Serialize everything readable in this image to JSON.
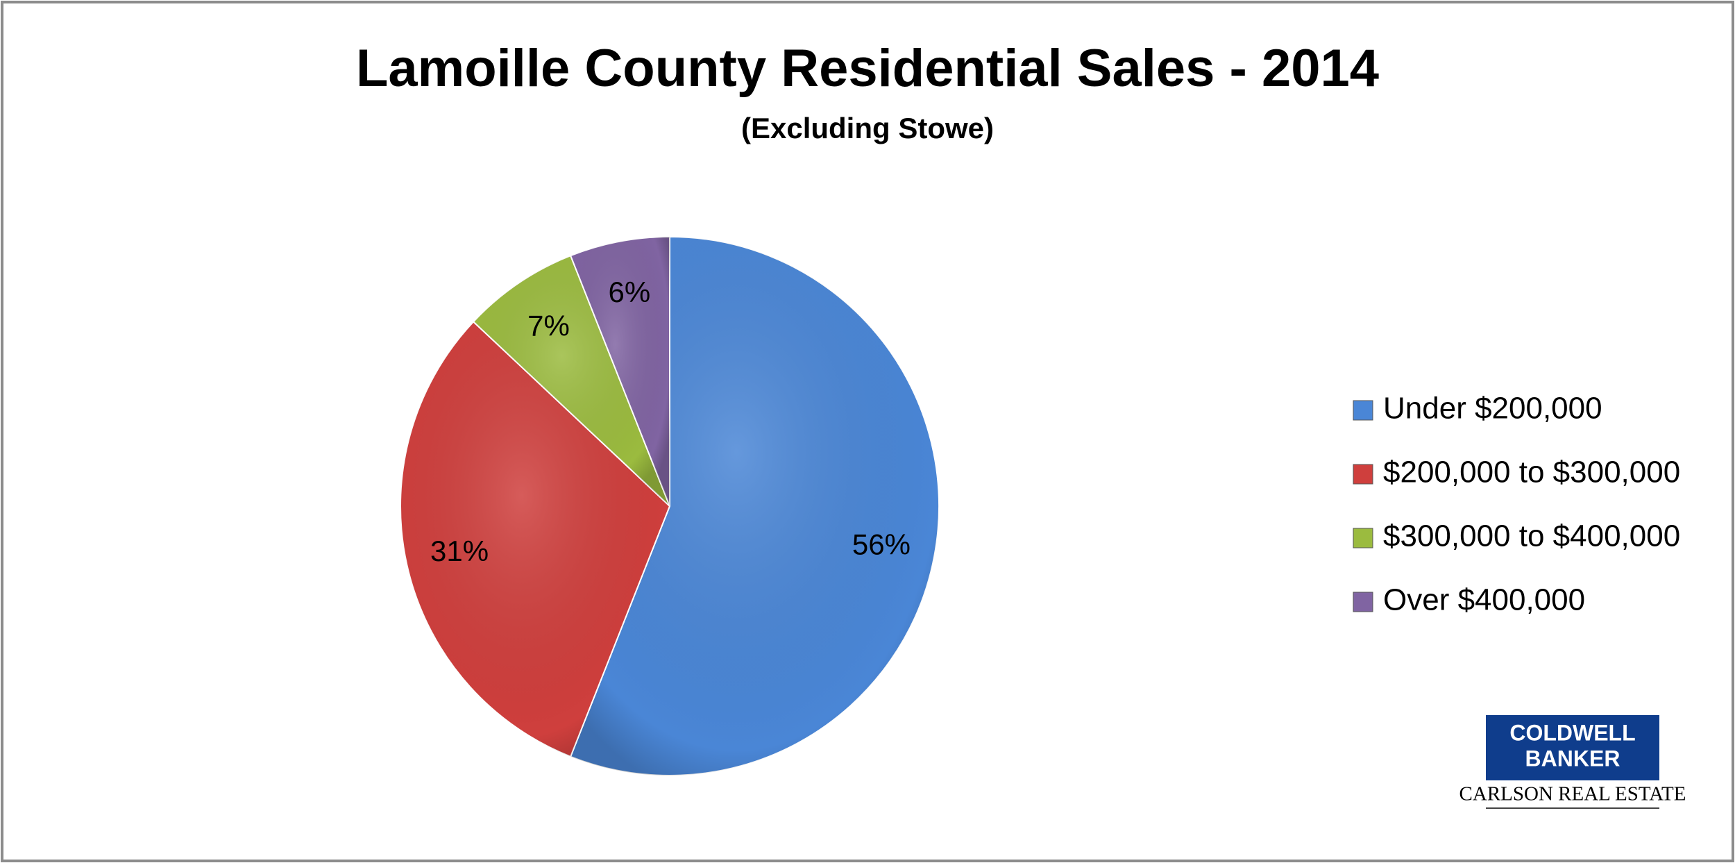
{
  "chart_data": {
    "type": "pie",
    "title": "Lamoille County Residential Sales - 2014",
    "subtitle": "(Excluding Stowe)",
    "categories": [
      "Under $200,000",
      "$200,000 to $300,000",
      "$300,000 to $400,000",
      "Over $400,000"
    ],
    "values": [
      56,
      31,
      7,
      6
    ],
    "value_labels": [
      "56%",
      "31%",
      "7%",
      "6%"
    ],
    "colors": [
      "#4a86d6",
      "#cf3f3d",
      "#9bbb3f",
      "#8064a2"
    ],
    "legend": "right"
  },
  "logo": {
    "brand": [
      "COLDWELL",
      "BANKER"
    ],
    "office": "CARLSON REAL ESTATE"
  }
}
